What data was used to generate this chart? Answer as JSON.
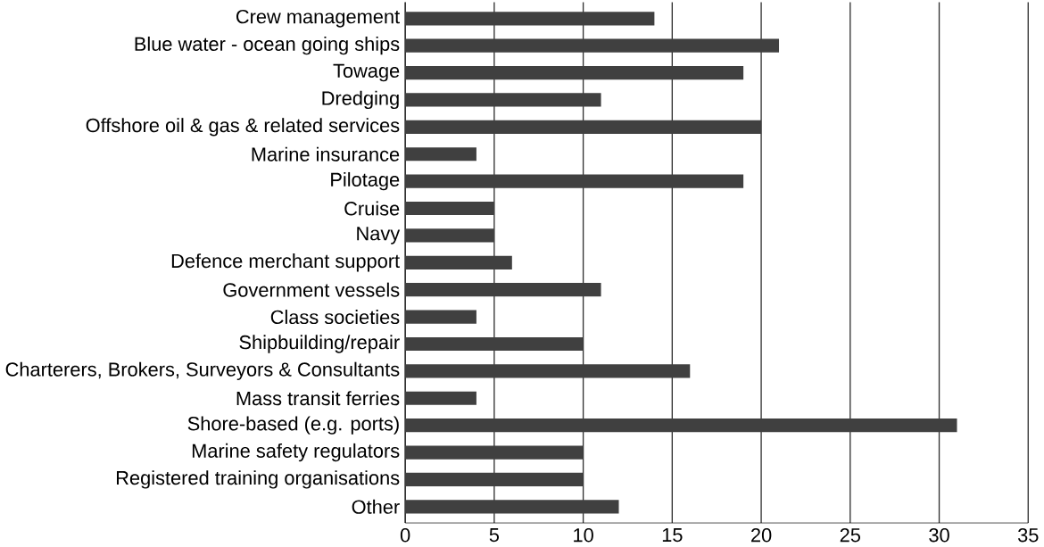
{
  "chart_data": {
    "type": "bar",
    "orientation": "horizontal",
    "categories": [
      "Crew management",
      "Blue water - ocean going ships",
      "Towage",
      "Dredging",
      "Offshore oil & gas & related services",
      "Marine insurance",
      "Pilotage",
      "Cruise",
      "Navy",
      "Defence merchant support",
      "Government vessels",
      "Class societies",
      "Shipbuilding/repair",
      "Charterers, Brokers, Surveyors & Consultants",
      "Mass transit ferries",
      "Shore-based (e.g. ports)",
      "Marine safety regulators",
      "Registered training organisations",
      "Other"
    ],
    "values": [
      14,
      21,
      19,
      11,
      20,
      4,
      19,
      5,
      5,
      6,
      11,
      4,
      10,
      16,
      4,
      31,
      10,
      10,
      12
    ],
    "color": "#404040",
    "xlim": [
      0,
      35
    ],
    "xticks": [
      0,
      5,
      10,
      15,
      20,
      25,
      30,
      35
    ],
    "grid": "x"
  }
}
